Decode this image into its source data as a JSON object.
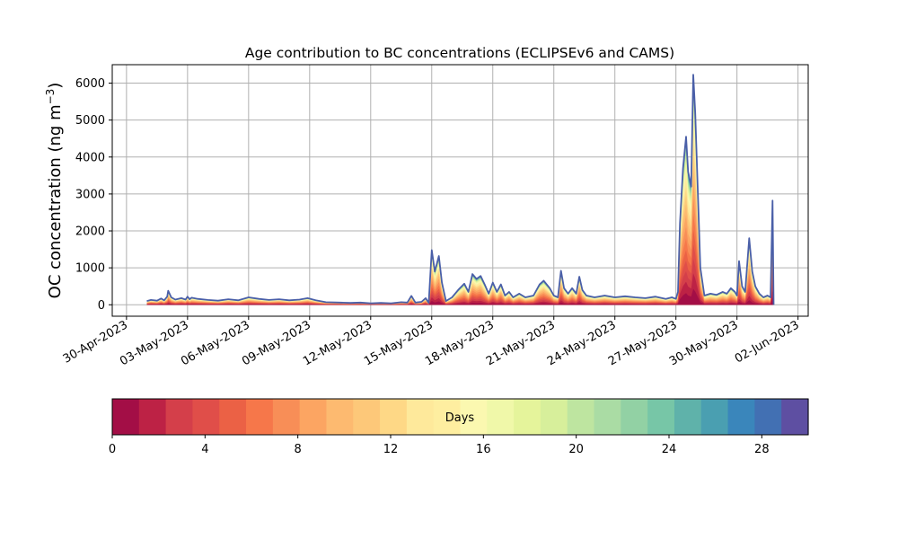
{
  "chart_data": {
    "type": "area",
    "title": "Age contribution to BC concentrations (ECLIPSEv6 and CAMS)",
    "ylabel_main": "OC concentration (ng m",
    "ylabel_sup": "−3",
    "ylabel_close": ")",
    "ylim": [
      -310,
      6500
    ],
    "yticks": [
      0,
      1000,
      2000,
      3000,
      4000,
      5000,
      6000
    ],
    "ytick_labels": [
      "0",
      "1000",
      "2000",
      "3000",
      "4000",
      "5000",
      "6000"
    ],
    "xlim_days": [
      -0.7,
      33.5
    ],
    "xticks": [
      {
        "offset": 0,
        "label": "30-Apr-2023"
      },
      {
        "offset": 3,
        "label": "03-May-2023"
      },
      {
        "offset": 6,
        "label": "06-May-2023"
      },
      {
        "offset": 9,
        "label": "09-May-2023"
      },
      {
        "offset": 12,
        "label": "12-May-2023"
      },
      {
        "offset": 15,
        "label": "15-May-2023"
      },
      {
        "offset": 18,
        "label": "18-May-2023"
      },
      {
        "offset": 21,
        "label": "21-May-2023"
      },
      {
        "offset": 24,
        "label": "24-May-2023"
      },
      {
        "offset": 27,
        "label": "27-May-2023"
      },
      {
        "offset": 30,
        "label": "30-May-2023"
      },
      {
        "offset": 33,
        "label": "02-Jun-2023"
      }
    ],
    "grid": true,
    "total_series": [
      {
        "x": 1.0,
        "y": 100
      },
      {
        "x": 1.2,
        "y": 130
      },
      {
        "x": 1.5,
        "y": 110
      },
      {
        "x": 1.7,
        "y": 170
      },
      {
        "x": 1.85,
        "y": 120
      },
      {
        "x": 2.0,
        "y": 220
      },
      {
        "x": 2.05,
        "y": 380
      },
      {
        "x": 2.2,
        "y": 200
      },
      {
        "x": 2.4,
        "y": 140
      },
      {
        "x": 2.7,
        "y": 180
      },
      {
        "x": 2.9,
        "y": 140
      },
      {
        "x": 3.0,
        "y": 220
      },
      {
        "x": 3.1,
        "y": 150
      },
      {
        "x": 3.2,
        "y": 190
      },
      {
        "x": 3.5,
        "y": 160
      },
      {
        "x": 4.0,
        "y": 130
      },
      {
        "x": 4.5,
        "y": 110
      },
      {
        "x": 5.0,
        "y": 150
      },
      {
        "x": 5.5,
        "y": 120
      },
      {
        "x": 6.0,
        "y": 200
      },
      {
        "x": 6.5,
        "y": 160
      },
      {
        "x": 7.0,
        "y": 130
      },
      {
        "x": 7.5,
        "y": 150
      },
      {
        "x": 8.0,
        "y": 120
      },
      {
        "x": 8.5,
        "y": 140
      },
      {
        "x": 8.9,
        "y": 180
      },
      {
        "x": 9.3,
        "y": 120
      },
      {
        "x": 9.8,
        "y": 70
      },
      {
        "x": 10.5,
        "y": 60
      },
      {
        "x": 11.0,
        "y": 50
      },
      {
        "x": 11.5,
        "y": 60
      },
      {
        "x": 12.0,
        "y": 40
      },
      {
        "x": 12.5,
        "y": 50
      },
      {
        "x": 13.0,
        "y": 40
      },
      {
        "x": 13.5,
        "y": 70
      },
      {
        "x": 13.8,
        "y": 60
      },
      {
        "x": 14.0,
        "y": 240
      },
      {
        "x": 14.2,
        "y": 60
      },
      {
        "x": 14.5,
        "y": 80
      },
      {
        "x": 14.7,
        "y": 180
      },
      {
        "x": 14.85,
        "y": 50
      },
      {
        "x": 15.0,
        "y": 1480
      },
      {
        "x": 15.15,
        "y": 900
      },
      {
        "x": 15.35,
        "y": 1320
      },
      {
        "x": 15.5,
        "y": 600
      },
      {
        "x": 15.7,
        "y": 100
      },
      {
        "x": 16.0,
        "y": 200
      },
      {
        "x": 16.3,
        "y": 400
      },
      {
        "x": 16.6,
        "y": 570
      },
      {
        "x": 16.8,
        "y": 350
      },
      {
        "x": 17.0,
        "y": 830
      },
      {
        "x": 17.2,
        "y": 700
      },
      {
        "x": 17.4,
        "y": 780
      },
      {
        "x": 17.6,
        "y": 550
      },
      {
        "x": 17.8,
        "y": 300
      },
      {
        "x": 18.0,
        "y": 600
      },
      {
        "x": 18.2,
        "y": 350
      },
      {
        "x": 18.4,
        "y": 550
      },
      {
        "x": 18.6,
        "y": 250
      },
      {
        "x": 18.8,
        "y": 350
      },
      {
        "x": 19.0,
        "y": 200
      },
      {
        "x": 19.3,
        "y": 300
      },
      {
        "x": 19.6,
        "y": 200
      },
      {
        "x": 20.0,
        "y": 250
      },
      {
        "x": 20.3,
        "y": 550
      },
      {
        "x": 20.5,
        "y": 650
      },
      {
        "x": 20.8,
        "y": 450
      },
      {
        "x": 21.0,
        "y": 250
      },
      {
        "x": 21.2,
        "y": 200
      },
      {
        "x": 21.35,
        "y": 920
      },
      {
        "x": 21.5,
        "y": 450
      },
      {
        "x": 21.7,
        "y": 300
      },
      {
        "x": 21.9,
        "y": 450
      },
      {
        "x": 22.1,
        "y": 300
      },
      {
        "x": 22.25,
        "y": 760
      },
      {
        "x": 22.4,
        "y": 400
      },
      {
        "x": 22.6,
        "y": 250
      },
      {
        "x": 23.0,
        "y": 200
      },
      {
        "x": 23.5,
        "y": 250
      },
      {
        "x": 24.0,
        "y": 200
      },
      {
        "x": 24.5,
        "y": 230
      },
      {
        "x": 25.0,
        "y": 200
      },
      {
        "x": 25.5,
        "y": 180
      },
      {
        "x": 26.0,
        "y": 220
      },
      {
        "x": 26.5,
        "y": 160
      },
      {
        "x": 26.8,
        "y": 200
      },
      {
        "x": 27.0,
        "y": 160
      },
      {
        "x": 27.1,
        "y": 350
      },
      {
        "x": 27.2,
        "y": 2200
      },
      {
        "x": 27.35,
        "y": 3700
      },
      {
        "x": 27.5,
        "y": 4550
      },
      {
        "x": 27.6,
        "y": 3600
      },
      {
        "x": 27.75,
        "y": 3200
      },
      {
        "x": 27.85,
        "y": 6230
      },
      {
        "x": 27.95,
        "y": 5200
      },
      {
        "x": 28.05,
        "y": 3500
      },
      {
        "x": 28.2,
        "y": 1000
      },
      {
        "x": 28.4,
        "y": 250
      },
      {
        "x": 28.7,
        "y": 300
      },
      {
        "x": 29.0,
        "y": 270
      },
      {
        "x": 29.3,
        "y": 350
      },
      {
        "x": 29.5,
        "y": 300
      },
      {
        "x": 29.7,
        "y": 450
      },
      {
        "x": 29.9,
        "y": 350
      },
      {
        "x": 30.0,
        "y": 250
      },
      {
        "x": 30.1,
        "y": 1180
      },
      {
        "x": 30.25,
        "y": 500
      },
      {
        "x": 30.4,
        "y": 350
      },
      {
        "x": 30.6,
        "y": 1800
      },
      {
        "x": 30.75,
        "y": 900
      },
      {
        "x": 30.9,
        "y": 500
      },
      {
        "x": 31.1,
        "y": 300
      },
      {
        "x": 31.3,
        "y": 200
      },
      {
        "x": 31.5,
        "y": 250
      },
      {
        "x": 31.65,
        "y": 200
      },
      {
        "x": 31.75,
        "y": 2820
      },
      {
        "x": 31.8,
        "y": 0
      }
    ],
    "layer_fractions": [
      {
        "day": 2,
        "fraction": 0.12
      },
      {
        "day": 6,
        "fraction": 0.34
      },
      {
        "day": 10,
        "fraction": 0.58
      },
      {
        "day": 14,
        "fraction": 0.76
      },
      {
        "day": 18,
        "fraction": 0.87
      },
      {
        "day": 22,
        "fraction": 0.93
      },
      {
        "day": 26,
        "fraction": 0.97
      },
      {
        "day": 30,
        "fraction": 1.0
      }
    ],
    "colorbar": {
      "label": "Days",
      "vmin": 0,
      "vmax": 30,
      "ticks": [
        "0",
        "4",
        "8",
        "12",
        "16",
        "20",
        "24",
        "28"
      ],
      "tick_values": [
        0,
        4,
        8,
        12,
        16,
        20,
        24,
        28
      ],
      "colors": [
        "#a30e46",
        "#bd2245",
        "#d43f4a",
        "#e04e49",
        "#eb6145",
        "#f6774a",
        "#f88e57",
        "#fca562",
        "#fdba70",
        "#fdc879",
        "#fed886",
        "#fee99b",
        "#feeea0",
        "#fbf8b0",
        "#f0f8a9",
        "#e5f49b",
        "#d7ef9b",
        "#bee5a0",
        "#aadca4",
        "#92d1a4",
        "#77c6a7",
        "#5fb2aa",
        "#4a9fb1",
        "#3a86bb",
        "#4270b3",
        "#5e4fa2"
      ]
    },
    "line_color": "#4a5fa8",
    "grid_color": "#b0b0b0"
  }
}
